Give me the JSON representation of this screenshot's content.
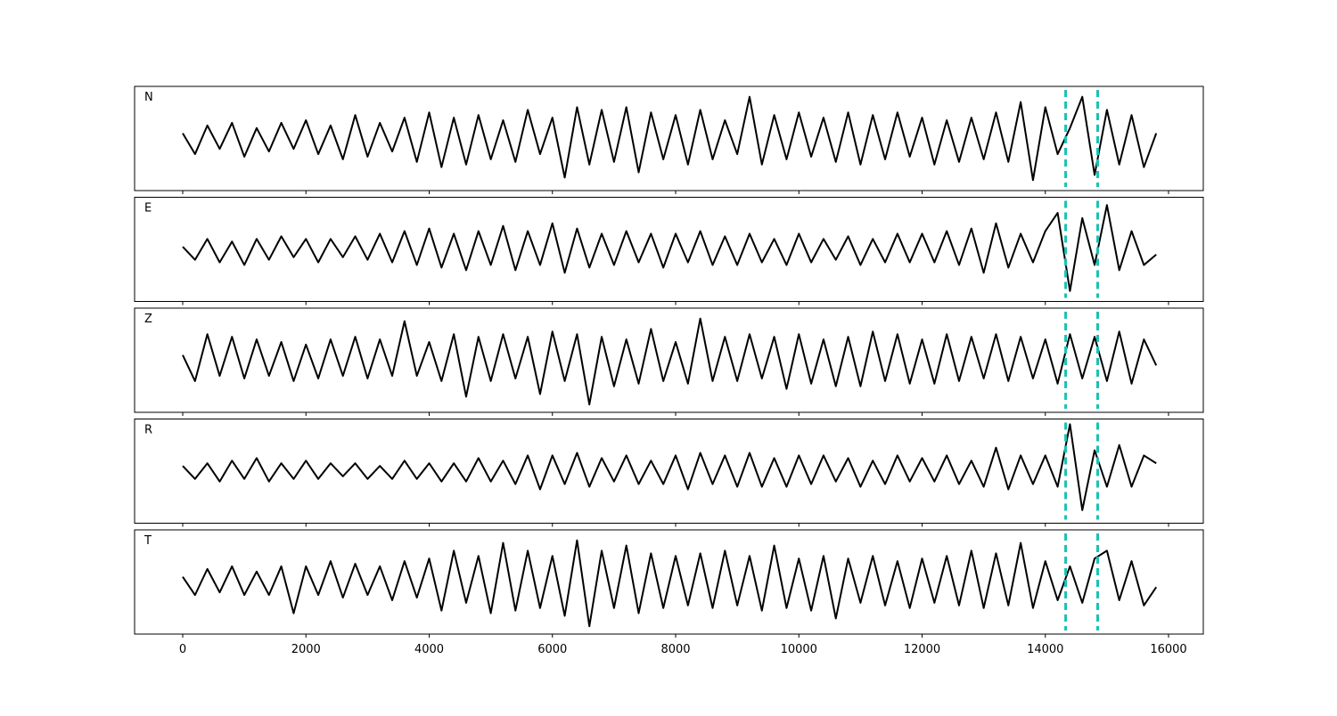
{
  "chart_data": [
    {
      "type": "line",
      "label": "N",
      "color": "#000000",
      "vline_color": "#1ac1b5",
      "vlines": [
        14330,
        14850
      ],
      "xlim": [
        -781,
        16564
      ],
      "xticks": [
        0,
        2000,
        4000,
        6000,
        8000,
        10000,
        12000,
        14000,
        16000
      ],
      "ylim": [
        -1,
        1
      ],
      "x": [
        0,
        200,
        400,
        600,
        800,
        1000,
        1200,
        1400,
        1600,
        1800,
        2000,
        2200,
        2400,
        2600,
        2800,
        3000,
        3200,
        3400,
        3600,
        3800,
        4000,
        4200,
        4400,
        4600,
        4800,
        5000,
        5200,
        5400,
        5600,
        5800,
        6000,
        6200,
        6400,
        6600,
        6800,
        7000,
        7200,
        7400,
        7600,
        7800,
        8000,
        8200,
        8400,
        8600,
        8800,
        9000,
        9200,
        9400,
        9600,
        9800,
        10000,
        10200,
        10400,
        10600,
        10800,
        11000,
        11200,
        11400,
        11600,
        11800,
        12000,
        12200,
        12400,
        12600,
        12800,
        13000,
        13200,
        13400,
        13600,
        13800,
        14000,
        14200,
        14400,
        14600,
        14800,
        15000,
        15200,
        15400,
        15600,
        15800
      ],
      "values": [
        0.1,
        -0.3,
        0.25,
        -0.2,
        0.3,
        -0.35,
        0.2,
        -0.25,
        0.3,
        -0.2,
        0.35,
        -0.3,
        0.25,
        -0.4,
        0.45,
        -0.35,
        0.3,
        -0.25,
        0.4,
        -0.45,
        0.5,
        -0.55,
        0.4,
        -0.5,
        0.45,
        -0.4,
        0.35,
        -0.45,
        0.55,
        -0.3,
        0.4,
        -0.75,
        0.6,
        -0.5,
        0.55,
        -0.45,
        0.6,
        -0.65,
        0.5,
        -0.4,
        0.45,
        -0.5,
        0.55,
        -0.4,
        0.35,
        -0.3,
        0.8,
        -0.5,
        0.45,
        -0.4,
        0.5,
        -0.35,
        0.4,
        -0.45,
        0.5,
        -0.5,
        0.45,
        -0.4,
        0.5,
        -0.35,
        0.4,
        -0.5,
        0.35,
        -0.45,
        0.4,
        -0.4,
        0.5,
        -0.45,
        0.7,
        -0.8,
        0.6,
        -0.3,
        0.2,
        0.8,
        -0.7,
        0.55,
        -0.5,
        0.45,
        -0.55,
        0.1
      ]
    },
    {
      "type": "line",
      "label": "E",
      "color": "#000000",
      "vline_color": "#1ac1b5",
      "vlines": [
        14330,
        14850
      ],
      "xlim": [
        -781,
        16564
      ],
      "xticks": [
        0,
        2000,
        4000,
        6000,
        8000,
        10000,
        12000,
        14000,
        16000
      ],
      "ylim": [
        -1,
        1
      ],
      "x": [
        0,
        200,
        400,
        600,
        800,
        1000,
        1200,
        1400,
        1600,
        1800,
        2000,
        2200,
        2400,
        2600,
        2800,
        3000,
        3200,
        3400,
        3600,
        3800,
        4000,
        4200,
        4400,
        4600,
        4800,
        5000,
        5200,
        5400,
        5600,
        5800,
        6000,
        6200,
        6400,
        6600,
        6800,
        7000,
        7200,
        7400,
        7600,
        7800,
        8000,
        8200,
        8400,
        8600,
        8800,
        9000,
        9200,
        9400,
        9600,
        9800,
        10000,
        10200,
        10400,
        10600,
        10800,
        11000,
        11200,
        11400,
        11600,
        11800,
        12000,
        12200,
        12400,
        12600,
        12800,
        13000,
        13200,
        13400,
        13600,
        13800,
        14000,
        14200,
        14400,
        14600,
        14800,
        15000,
        15200,
        15400,
        15600,
        15800
      ],
      "values": [
        0.05,
        -0.2,
        0.2,
        -0.25,
        0.15,
        -0.3,
        0.2,
        -0.2,
        0.25,
        -0.15,
        0.2,
        -0.25,
        0.2,
        -0.15,
        0.25,
        -0.2,
        0.3,
        -0.25,
        0.35,
        -0.3,
        0.4,
        -0.35,
        0.3,
        -0.4,
        0.35,
        -0.3,
        0.45,
        -0.4,
        0.35,
        -0.3,
        0.5,
        -0.45,
        0.4,
        -0.35,
        0.3,
        -0.3,
        0.35,
        -0.25,
        0.3,
        -0.35,
        0.3,
        -0.25,
        0.35,
        -0.3,
        0.25,
        -0.3,
        0.3,
        -0.25,
        0.2,
        -0.3,
        0.3,
        -0.25,
        0.2,
        -0.2,
        0.25,
        -0.3,
        0.2,
        -0.25,
        0.3,
        -0.25,
        0.3,
        -0.25,
        0.35,
        -0.3,
        0.4,
        -0.45,
        0.5,
        -0.35,
        0.3,
        -0.25,
        0.35,
        0.7,
        -0.8,
        0.6,
        -0.3,
        0.85,
        -0.4,
        0.35,
        -0.3,
        -0.1
      ]
    },
    {
      "type": "line",
      "label": "Z",
      "color": "#000000",
      "vline_color": "#1ac1b5",
      "vlines": [
        14330,
        14850
      ],
      "xlim": [
        -781,
        16564
      ],
      "xticks": [
        0,
        2000,
        4000,
        6000,
        8000,
        10000,
        12000,
        14000,
        16000
      ],
      "ylim": [
        -1,
        1
      ],
      "x": [
        0,
        200,
        400,
        600,
        800,
        1000,
        1200,
        1400,
        1600,
        1800,
        2000,
        2200,
        2400,
        2600,
        2800,
        3000,
        3200,
        3400,
        3600,
        3800,
        4000,
        4200,
        4400,
        4600,
        4800,
        5000,
        5200,
        5400,
        5600,
        5800,
        6000,
        6200,
        6400,
        6600,
        6800,
        7000,
        7200,
        7400,
        7600,
        7800,
        8000,
        8200,
        8400,
        8600,
        8800,
        9000,
        9200,
        9400,
        9600,
        9800,
        10000,
        10200,
        10400,
        10600,
        10800,
        11000,
        11200,
        11400,
        11600,
        11800,
        12000,
        12200,
        12400,
        12600,
        12800,
        13000,
        13200,
        13400,
        13600,
        13800,
        14000,
        14200,
        14400,
        14600,
        14800,
        15000,
        15200,
        15400,
        15600,
        15800
      ],
      "values": [
        0.1,
        -0.4,
        0.5,
        -0.3,
        0.45,
        -0.35,
        0.4,
        -0.3,
        0.35,
        -0.4,
        0.3,
        -0.35,
        0.4,
        -0.3,
        0.45,
        -0.35,
        0.4,
        -0.3,
        0.75,
        -0.3,
        0.35,
        -0.4,
        0.5,
        -0.7,
        0.45,
        -0.4,
        0.5,
        -0.35,
        0.45,
        -0.65,
        0.55,
        -0.4,
        0.5,
        -0.85,
        0.45,
        -0.5,
        0.4,
        -0.45,
        0.6,
        -0.4,
        0.35,
        -0.45,
        0.8,
        -0.4,
        0.45,
        -0.4,
        0.5,
        -0.35,
        0.45,
        -0.55,
        0.5,
        -0.45,
        0.4,
        -0.5,
        0.45,
        -0.5,
        0.55,
        -0.4,
        0.5,
        -0.45,
        0.4,
        -0.45,
        0.5,
        -0.4,
        0.45,
        -0.35,
        0.5,
        -0.4,
        0.45,
        -0.35,
        0.4,
        -0.45,
        0.5,
        -0.35,
        0.45,
        -0.4,
        0.55,
        -0.45,
        0.4,
        -0.1
      ]
    },
    {
      "type": "line",
      "label": "R",
      "color": "#000000",
      "vline_color": "#1ac1b5",
      "vlines": [
        14330,
        14850
      ],
      "xlim": [
        -781,
        16564
      ],
      "xticks": [
        0,
        2000,
        4000,
        6000,
        8000,
        10000,
        12000,
        14000,
        16000
      ],
      "ylim": [
        -1,
        1
      ],
      "x": [
        0,
        200,
        400,
        600,
        800,
        1000,
        1200,
        1400,
        1600,
        1800,
        2000,
        2200,
        2400,
        2600,
        2800,
        3000,
        3200,
        3400,
        3600,
        3800,
        4000,
        4200,
        4400,
        4600,
        4800,
        5000,
        5200,
        5400,
        5600,
        5800,
        6000,
        6200,
        6400,
        6600,
        6800,
        7000,
        7200,
        7400,
        7600,
        7800,
        8000,
        8200,
        8400,
        8600,
        8800,
        9000,
        9200,
        9400,
        9600,
        9800,
        10000,
        10200,
        10400,
        10600,
        10800,
        11000,
        11200,
        11400,
        11600,
        11800,
        12000,
        12200,
        12400,
        12600,
        12800,
        13000,
        13200,
        13400,
        13600,
        13800,
        14000,
        14200,
        14400,
        14600,
        14800,
        15000,
        15200,
        15400,
        15600,
        15800
      ],
      "values": [
        0.1,
        -0.15,
        0.15,
        -0.2,
        0.2,
        -0.15,
        0.25,
        -0.2,
        0.15,
        -0.15,
        0.2,
        -0.15,
        0.15,
        -0.1,
        0.15,
        -0.15,
        0.1,
        -0.15,
        0.2,
        -0.15,
        0.15,
        -0.2,
        0.15,
        -0.2,
        0.25,
        -0.2,
        0.2,
        -0.25,
        0.3,
        -0.35,
        0.3,
        -0.25,
        0.35,
        -0.3,
        0.25,
        -0.2,
        0.3,
        -0.25,
        0.2,
        -0.25,
        0.3,
        -0.35,
        0.35,
        -0.25,
        0.3,
        -0.3,
        0.35,
        -0.3,
        0.25,
        -0.3,
        0.3,
        -0.25,
        0.3,
        -0.2,
        0.25,
        -0.3,
        0.2,
        -0.25,
        0.3,
        -0.2,
        0.25,
        -0.2,
        0.3,
        -0.25,
        0.2,
        -0.3,
        0.45,
        -0.35,
        0.3,
        -0.25,
        0.3,
        -0.3,
        0.9,
        -0.75,
        0.4,
        -0.3,
        0.5,
        -0.3,
        0.3,
        0.15
      ]
    },
    {
      "type": "line",
      "label": "T",
      "color": "#000000",
      "vline_color": "#1ac1b5",
      "vlines": [
        14330,
        14850
      ],
      "xlim": [
        -781,
        16564
      ],
      "xticks": [
        0,
        2000,
        4000,
        6000,
        8000,
        10000,
        12000,
        14000,
        16000
      ],
      "ylim": [
        -1,
        1
      ],
      "x": [
        0,
        200,
        400,
        600,
        800,
        1000,
        1200,
        1400,
        1600,
        1800,
        2000,
        2200,
        2400,
        2600,
        2800,
        3000,
        3200,
        3400,
        3600,
        3800,
        4000,
        4200,
        4400,
        4600,
        4800,
        5000,
        5200,
        5400,
        5600,
        5800,
        6000,
        6200,
        6400,
        6600,
        6800,
        7000,
        7200,
        7400,
        7600,
        7800,
        8000,
        8200,
        8400,
        8600,
        8800,
        9000,
        9200,
        9400,
        9600,
        9800,
        10000,
        10200,
        10400,
        10600,
        10800,
        11000,
        11200,
        11400,
        11600,
        11800,
        12000,
        12200,
        12400,
        12600,
        12800,
        13000,
        13200,
        13400,
        13600,
        13800,
        14000,
        14200,
        14400,
        14600,
        14800,
        15000,
        15200,
        15400,
        15600,
        15800
      ],
      "values": [
        0.1,
        -0.25,
        0.25,
        -0.2,
        0.3,
        -0.25,
        0.2,
        -0.25,
        0.3,
        -0.6,
        0.3,
        -0.25,
        0.4,
        -0.3,
        0.35,
        -0.25,
        0.3,
        -0.35,
        0.4,
        -0.3,
        0.45,
        -0.55,
        0.6,
        -0.4,
        0.5,
        -0.6,
        0.75,
        -0.55,
        0.6,
        -0.5,
        0.5,
        -0.65,
        0.8,
        -0.85,
        0.6,
        -0.5,
        0.7,
        -0.6,
        0.55,
        -0.5,
        0.5,
        -0.45,
        0.55,
        -0.5,
        0.6,
        -0.45,
        0.5,
        -0.55,
        0.7,
        -0.5,
        0.45,
        -0.55,
        0.5,
        -0.7,
        0.45,
        -0.4,
        0.5,
        -0.45,
        0.4,
        -0.5,
        0.45,
        -0.4,
        0.5,
        -0.45,
        0.6,
        -0.5,
        0.55,
        -0.45,
        0.75,
        -0.5,
        0.4,
        -0.35,
        0.3,
        -0.4,
        0.45,
        0.6,
        -0.35,
        0.4,
        -0.45,
        -0.1
      ]
    }
  ]
}
